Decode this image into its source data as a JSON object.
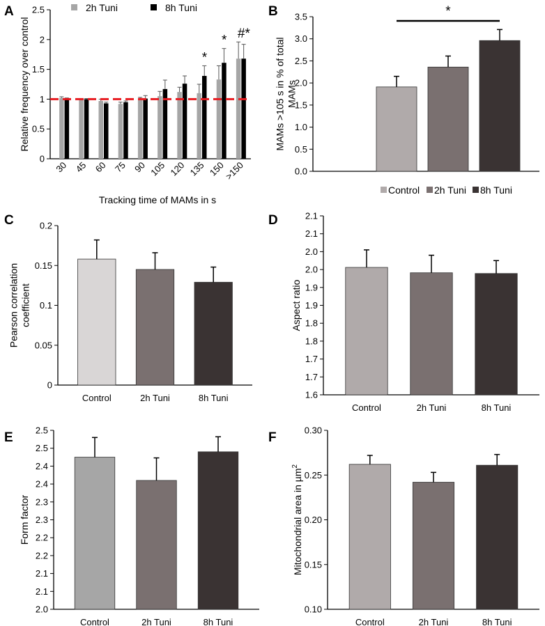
{
  "chart_data": [
    {
      "panel": "A",
      "type": "bar",
      "xlabel": "Tracking time of MAMs in s",
      "ylabel": "Relative frequency over control",
      "ylim": [
        0,
        2.5
      ],
      "yticks": [
        "0",
        "0.5",
        "1",
        "1.5",
        "2",
        "2.5"
      ],
      "categories": [
        "30",
        "45",
        "60",
        "75",
        "90",
        "105",
        "120",
        "135",
        "150",
        ">150"
      ],
      "series": [
        {
          "name": "2h Tuni",
          "color": "#a6a6a6",
          "values": [
            1.02,
            1.0,
            0.97,
            0.92,
            0.99,
            1.05,
            1.12,
            1.1,
            1.33,
            1.68
          ],
          "errors": [
            0.02,
            0.01,
            0.03,
            0.03,
            0.04,
            0.08,
            0.08,
            0.15,
            0.23,
            0.28
          ]
        },
        {
          "name": "8h Tuni",
          "color": "#000000",
          "values": [
            1.0,
            1.0,
            0.93,
            0.95,
            1.01,
            1.17,
            1.26,
            1.39,
            1.61,
            1.68
          ],
          "errors": [
            0.02,
            0.01,
            0.02,
            0.02,
            0.05,
            0.15,
            0.13,
            0.17,
            0.24,
            0.24
          ]
        }
      ],
      "reference_line": 1,
      "reference_color": "#e8191e",
      "annotations": [
        {
          "category": "135",
          "text": "*"
        },
        {
          "category": "150",
          "text": "*"
        },
        {
          "category": ">150",
          "text": "#*"
        }
      ]
    },
    {
      "panel": "B",
      "type": "bar",
      "ylabel": "MAMs >105 s in % of total MAMs",
      "ylabel_lines": [
        "MAMs >105 s in % of total",
        "MAMs"
      ],
      "ylim": [
        0,
        3.5
      ],
      "yticks": [
        "0.0",
        "0.5",
        "1.0",
        "1.5",
        "2.0",
        "2.5",
        "3.0",
        "3.5"
      ],
      "categories": [
        "Control",
        "2h Tuni",
        "8h Tuni"
      ],
      "values": [
        1.91,
        2.36,
        2.96
      ],
      "errors": [
        0.24,
        0.25,
        0.25
      ],
      "colors": [
        "#b0aaaa",
        "#7a7070",
        "#3a3333"
      ],
      "legend": [
        "Control",
        "2h Tuni",
        "8h Tuni"
      ],
      "significance": "*"
    },
    {
      "panel": "C",
      "type": "bar",
      "ylabel": "Pearson correlation coefficient",
      "ylabel_lines": [
        "Pearson correlation",
        "coefficient"
      ],
      "ylim": [
        0,
        0.2
      ],
      "yticks": [
        "0",
        "0.05",
        "0.1",
        "0.15",
        "0.2"
      ],
      "categories": [
        "Control",
        "2h Tuni",
        "8h Tuni"
      ],
      "values": [
        0.158,
        0.145,
        0.129
      ],
      "errors": [
        0.024,
        0.021,
        0.019
      ],
      "colors": [
        "#d9d6d6",
        "#7a7070",
        "#3a3333"
      ]
    },
    {
      "panel": "D",
      "type": "bar",
      "ylabel": "Aspect ratio",
      "ylim": [
        1.6,
        2.1
      ],
      "yticks": [
        "1.6",
        "1.7",
        "1.7",
        "1.8",
        "1.8",
        "1.9",
        "1.9",
        "2.0",
        "2.0",
        "2.1",
        "2.1"
      ],
      "categories": [
        "Control",
        "2h Tuni",
        "8h Tuni"
      ],
      "values": [
        1.956,
        1.941,
        1.939
      ],
      "errors": [
        0.049,
        0.049,
        0.036
      ],
      "colors": [
        "#b0aaaa",
        "#7a7070",
        "#3a3333"
      ]
    },
    {
      "panel": "E",
      "type": "bar",
      "ylabel": "Form factor",
      "ylim": [
        2.0,
        2.5
      ],
      "yticks": [
        "2.0",
        "2.1",
        "2.1",
        "2.2",
        "2.2",
        "2.3",
        "2.3",
        "2.4",
        "2.4",
        "2.5",
        "2.5"
      ],
      "categories": [
        "Control",
        "2h Tuni",
        "8h Tuni"
      ],
      "values": [
        2.425,
        2.36,
        2.44
      ],
      "errors": [
        0.055,
        0.063,
        0.042
      ],
      "colors": [
        "#a6a6a6",
        "#7a7070",
        "#3a3333"
      ]
    },
    {
      "panel": "F",
      "type": "bar",
      "ylabel": "Mitochondrial area in µm²",
      "ylabel_main": "Mitochondrial area in µm",
      "ylabel_sup": "2",
      "ylim": [
        0.1,
        0.3
      ],
      "yticks": [
        "0.10",
        "0.15",
        "0.20",
        "0.25",
        "0.30"
      ],
      "categories": [
        "Control",
        "2h Tuni",
        "8h Tuni"
      ],
      "values": [
        0.262,
        0.242,
        0.261
      ],
      "errors": [
        0.01,
        0.011,
        0.012
      ],
      "colors": [
        "#b0aaaa",
        "#7a7070",
        "#3a3333"
      ]
    }
  ]
}
